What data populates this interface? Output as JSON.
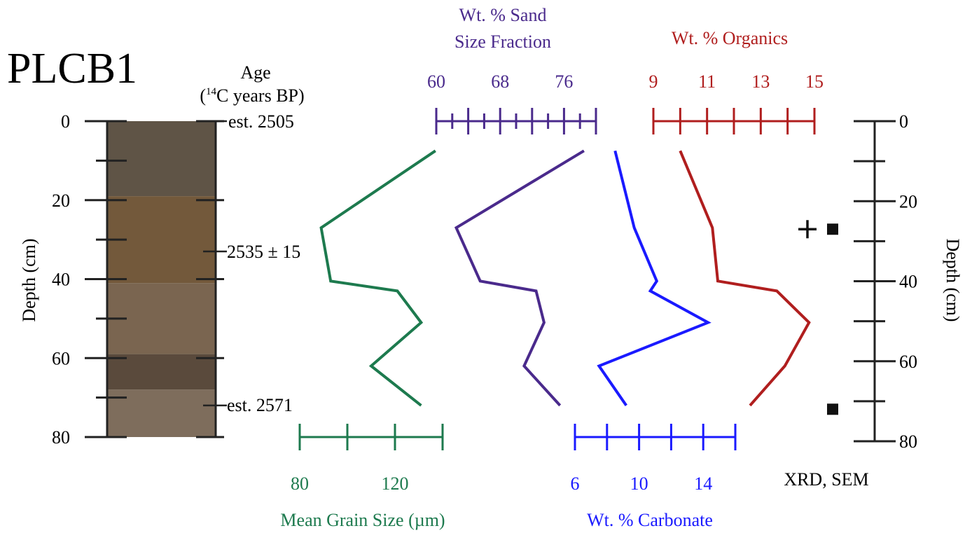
{
  "core": {
    "id": "PLCB1",
    "colors": [
      "#5f5446",
      "#73593b",
      "#7a6550",
      "#5a4a3c",
      "#7e6d5c"
    ],
    "depth_axis_label": "Depth (cm)",
    "depth_ticks": [
      "0",
      "20",
      "40",
      "60",
      "80"
    ]
  },
  "age": {
    "label_line1": "Age",
    "label_line2_sup": "14",
    "label_line2_rest": "C years BP)",
    "label_line2_open": "(",
    "dates": [
      "est. 2505",
      "2535 ± 15",
      "est. 2571"
    ]
  },
  "samples": {
    "label": "XRD, SEM",
    "right_depth_label": "Depth (cm)",
    "right_depth_ticks": [
      "0",
      "20",
      "40",
      "60",
      "80"
    ]
  },
  "chart_data": {
    "type": "line",
    "orientation": "depth-profile",
    "depth_unit": "cm",
    "depth_range": [
      0,
      80
    ],
    "series": [
      {
        "name": "Mean Grain Size (µm)",
        "color": "#1d7a4e",
        "axis_position": "bottom",
        "axis_range": [
          80,
          140
        ],
        "axis_ticks": [
          "80",
          "120"
        ],
        "points": [
          [
            137,
            7.5
          ],
          [
            89,
            27
          ],
          [
            93,
            40.5
          ],
          [
            121,
            43
          ],
          [
            131,
            51
          ],
          [
            110,
            62
          ],
          [
            131,
            72
          ]
        ]
      },
      {
        "name": "Wt. % Sand Size Fraction",
        "name_line1": "Wt. % Sand",
        "name_line2": "Size Fraction",
        "color": "#4a2a8c",
        "axis_position": "top",
        "axis_range": [
          60,
          80
        ],
        "axis_ticks": [
          "60",
          "68",
          "76"
        ],
        "points": [
          [
            78.5,
            7.5
          ],
          [
            62.5,
            27
          ],
          [
            65.5,
            40.5
          ],
          [
            72.5,
            43
          ],
          [
            73.5,
            51
          ],
          [
            71,
            62
          ],
          [
            75.5,
            72
          ]
        ]
      },
      {
        "name": "Wt. % Carbonate",
        "color": "#1a1aff",
        "axis_position": "bottom",
        "axis_range": [
          6,
          16
        ],
        "axis_ticks": [
          "6",
          "10",
          "14"
        ],
        "points": [
          [
            8.5,
            7.5
          ],
          [
            9.7,
            27
          ],
          [
            11.1,
            40.5
          ],
          [
            10.7,
            43
          ],
          [
            14.3,
            51
          ],
          [
            7.5,
            62
          ],
          [
            9.2,
            72
          ]
        ]
      },
      {
        "name": "Wt. % Organics",
        "color": "#b01e1e",
        "axis_position": "top",
        "axis_range": [
          9,
          15
        ],
        "axis_ticks": [
          "9",
          "11",
          "13",
          "15"
        ],
        "points": [
          [
            10,
            7.5
          ],
          [
            11.2,
            27
          ],
          [
            11.4,
            40.5
          ],
          [
            13.6,
            43
          ],
          [
            14.8,
            51
          ],
          [
            13.9,
            62
          ],
          [
            12.6,
            72
          ]
        ]
      }
    ],
    "sample_markers": [
      {
        "symbol": "+",
        "depth": 27
      },
      {
        "symbol": "square",
        "depth": 27
      },
      {
        "symbol": "square",
        "depth": 72
      }
    ]
  }
}
